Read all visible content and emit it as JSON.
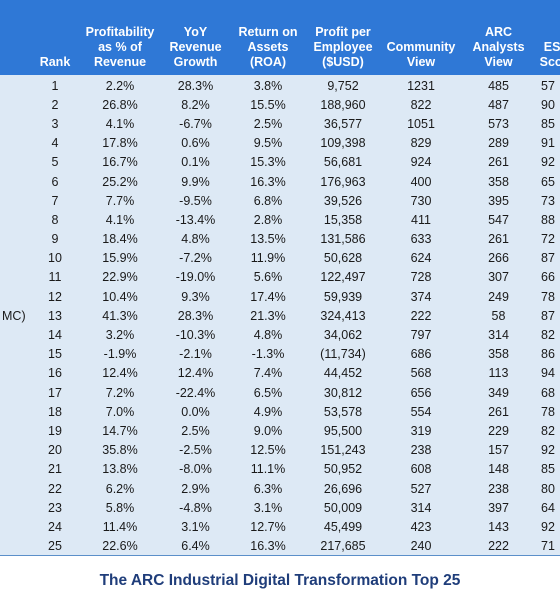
{
  "columns": [
    {
      "key": "company",
      "label": ""
    },
    {
      "key": "rank",
      "label": "Rank"
    },
    {
      "key": "profitability",
      "label": "Profitability\nas % of\nRevenue"
    },
    {
      "key": "yoy",
      "label": "YoY\nRevenue\nGrowth"
    },
    {
      "key": "roa",
      "label": "Return on\nAssets\n(ROA)"
    },
    {
      "key": "ppe",
      "label": "Profit per\nEmployee\n($USD)"
    },
    {
      "key": "community",
      "label": "Community\nView"
    },
    {
      "key": "analysts",
      "label": "ARC\nAnalysts\nView"
    },
    {
      "key": "esg",
      "label": "ESG\nScore"
    }
  ],
  "rows": [
    {
      "company": "",
      "rank": "1",
      "profitability": "2.2%",
      "yoy": "28.3%",
      "roa": "3.8%",
      "ppe": "9,752",
      "community": "1231",
      "analysts": "485",
      "esg": "57"
    },
    {
      "company": "",
      "rank": "2",
      "profitability": "26.8%",
      "yoy": "8.2%",
      "roa": "15.5%",
      "ppe": "188,960",
      "community": "822",
      "analysts": "487",
      "esg": "90"
    },
    {
      "company": "",
      "rank": "3",
      "profitability": "4.1%",
      "yoy": "-6.7%",
      "roa": "2.5%",
      "ppe": "36,577",
      "community": "1051",
      "analysts": "573",
      "esg": "85"
    },
    {
      "company": "",
      "rank": "4",
      "profitability": "17.8%",
      "yoy": "0.6%",
      "roa": "9.5%",
      "ppe": "109,398",
      "community": "829",
      "analysts": "289",
      "esg": "91"
    },
    {
      "company": "",
      "rank": "5",
      "profitability": "16.7%",
      "yoy": "0.1%",
      "roa": "15.3%",
      "ppe": "56,681",
      "community": "924",
      "analysts": "261",
      "esg": "92"
    },
    {
      "company": "",
      "rank": "6",
      "profitability": "25.2%",
      "yoy": "9.9%",
      "roa": "16.3%",
      "ppe": "176,963",
      "community": "400",
      "analysts": "358",
      "esg": "65"
    },
    {
      "company": "",
      "rank": "7",
      "profitability": "7.7%",
      "yoy": "-9.5%",
      "roa": "6.8%",
      "ppe": "39,526",
      "community": "730",
      "analysts": "395",
      "esg": "73"
    },
    {
      "company": "",
      "rank": "8",
      "profitability": "4.1%",
      "yoy": "-13.4%",
      "roa": "2.8%",
      "ppe": "15,358",
      "community": "411",
      "analysts": "547",
      "esg": "88"
    },
    {
      "company": "",
      "rank": "9",
      "profitability": "18.4%",
      "yoy": "4.8%",
      "roa": "13.5%",
      "ppe": "131,586",
      "community": "633",
      "analysts": "261",
      "esg": "72"
    },
    {
      "company": "",
      "rank": "10",
      "profitability": "15.9%",
      "yoy": "-7.2%",
      "roa": "11.9%",
      "ppe": "50,628",
      "community": "624",
      "analysts": "266",
      "esg": "87"
    },
    {
      "company": "",
      "rank": "11",
      "profitability": "22.9%",
      "yoy": "-19.0%",
      "roa": "5.6%",
      "ppe": "122,497",
      "community": "728",
      "analysts": "307",
      "esg": "66"
    },
    {
      "company": "",
      "rank": "12",
      "profitability": "10.4%",
      "yoy": "9.3%",
      "roa": "17.4%",
      "ppe": "59,939",
      "community": "374",
      "analysts": "249",
      "esg": "78"
    },
    {
      "company": "MC)",
      "rank": "13",
      "profitability": "41.3%",
      "yoy": "28.3%",
      "roa": "21.3%",
      "ppe": "324,413",
      "community": "222",
      "analysts": "58",
      "esg": "87"
    },
    {
      "company": "",
      "rank": "14",
      "profitability": "3.2%",
      "yoy": "-10.3%",
      "roa": "4.8%",
      "ppe": "34,062",
      "community": "797",
      "analysts": "314",
      "esg": "82"
    },
    {
      "company": "",
      "rank": "15",
      "profitability": "-1.9%",
      "yoy": "-2.1%",
      "roa": "-1.3%",
      "ppe": "(11,734)",
      "community": "686",
      "analysts": "358",
      "esg": "86"
    },
    {
      "company": "",
      "rank": "16",
      "profitability": "12.4%",
      "yoy": "12.4%",
      "roa": "7.4%",
      "ppe": "44,452",
      "community": "568",
      "analysts": "113",
      "esg": "94"
    },
    {
      "company": "",
      "rank": "17",
      "profitability": "7.2%",
      "yoy": "-22.4%",
      "roa": "6.5%",
      "ppe": "30,812",
      "community": "656",
      "analysts": "349",
      "esg": "68"
    },
    {
      "company": "",
      "rank": "18",
      "profitability": "7.0%",
      "yoy": "0.0%",
      "roa": "4.9%",
      "ppe": "53,578",
      "community": "554",
      "analysts": "261",
      "esg": "78"
    },
    {
      "company": "",
      "rank": "19",
      "profitability": "14.7%",
      "yoy": "2.5%",
      "roa": "9.0%",
      "ppe": "95,500",
      "community": "319",
      "analysts": "229",
      "esg": "82"
    },
    {
      "company": "",
      "rank": "20",
      "profitability": "35.8%",
      "yoy": "-2.5%",
      "roa": "12.5%",
      "ppe": "151,243",
      "community": "238",
      "analysts": "157",
      "esg": "92"
    },
    {
      "company": "",
      "rank": "21",
      "profitability": "13.8%",
      "yoy": "-8.0%",
      "roa": "11.1%",
      "ppe": "50,952",
      "community": "608",
      "analysts": "148",
      "esg": "85"
    },
    {
      "company": "",
      "rank": "22",
      "profitability": "6.2%",
      "yoy": "2.9%",
      "roa": "6.3%",
      "ppe": "26,696",
      "community": "527",
      "analysts": "238",
      "esg": "80"
    },
    {
      "company": "",
      "rank": "23",
      "profitability": "5.8%",
      "yoy": "-4.8%",
      "roa": "3.1%",
      "ppe": "50,009",
      "community": "314",
      "analysts": "397",
      "esg": "64"
    },
    {
      "company": "",
      "rank": "24",
      "profitability": "11.4%",
      "yoy": "3.1%",
      "roa": "12.7%",
      "ppe": "45,499",
      "community": "423",
      "analysts": "143",
      "esg": "92"
    },
    {
      "company": "",
      "rank": "25",
      "profitability": "22.6%",
      "yoy": "6.4%",
      "roa": "16.3%",
      "ppe": "217,685",
      "community": "240",
      "analysts": "222",
      "esg": "71"
    }
  ],
  "caption": "The ARC Industrial Digital Transformation Top 25",
  "colors": {
    "header_bg": "#2F78D6",
    "body_bg": "#DDE9F5",
    "caption": "#1F3D7A"
  }
}
